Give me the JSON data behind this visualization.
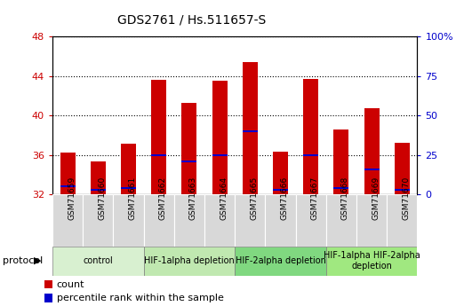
{
  "title": "GDS2761 / Hs.511657-S",
  "samples": [
    "GSM71659",
    "GSM71660",
    "GSM71661",
    "GSM71662",
    "GSM71663",
    "GSM71664",
    "GSM71665",
    "GSM71666",
    "GSM71667",
    "GSM71668",
    "GSM71669",
    "GSM71670"
  ],
  "bar_bottom": 32,
  "counts": [
    36.2,
    35.3,
    37.1,
    43.6,
    41.3,
    43.5,
    45.4,
    36.3,
    43.7,
    38.6,
    40.7,
    37.2
  ],
  "percentile_ranks_pct": [
    5,
    3,
    4,
    25,
    21,
    25,
    40,
    3,
    25,
    4,
    16,
    3
  ],
  "ylim_left": [
    32,
    48
  ],
  "ylim_right": [
    0,
    100
  ],
  "yticks_left": [
    32,
    36,
    40,
    44,
    48
  ],
  "yticks_right": [
    0,
    25,
    50,
    75,
    100
  ],
  "bar_color": "#cc0000",
  "percentile_color": "#0000cc",
  "protocol_groups": [
    {
      "label": "control",
      "start": 0,
      "end": 3,
      "color": "#d8f0d0"
    },
    {
      "label": "HIF-1alpha depletion",
      "start": 3,
      "end": 6,
      "color": "#c0e8b0"
    },
    {
      "label": "HIF-2alpha depletion",
      "start": 6,
      "end": 9,
      "color": "#80d880"
    },
    {
      "label": "HIF-1alpha HIF-2alpha\ndepletion",
      "start": 9,
      "end": 12,
      "color": "#a0e880"
    }
  ],
  "protocol_label": "protocol",
  "legend_count_label": "count",
  "legend_percentile_label": "percentile rank within the sample",
  "left_label_color": "#cc0000",
  "right_label_color": "#0000cc",
  "bg_color": "#d8d8d8",
  "bar_width": 0.5
}
